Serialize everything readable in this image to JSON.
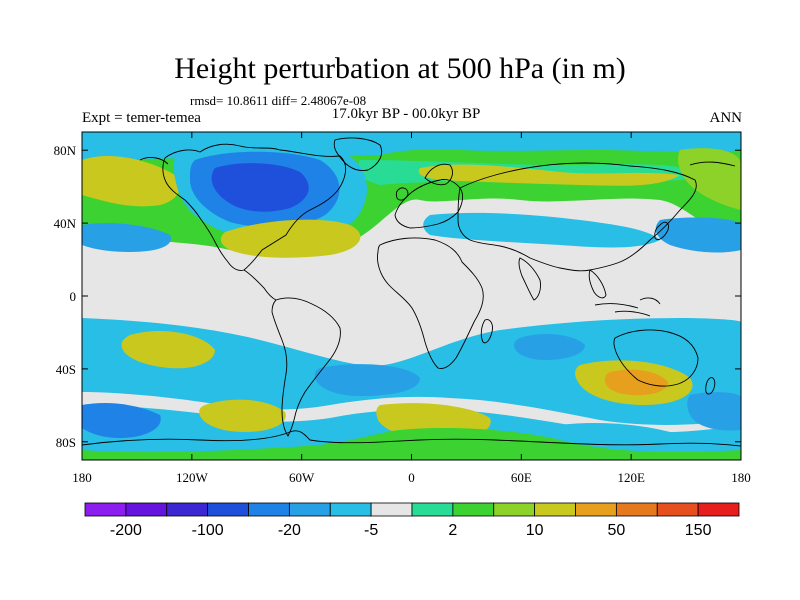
{
  "title": "Height perturbation at 500 hPa (in m)",
  "stats": "rmsd= 10.8611 diff= 2.48067e-08",
  "expt": "Expt = temer-temea",
  "period": "17.0kyr BP - 00.0kyr BP",
  "season": "ANN",
  "axes": {
    "lon_ticks": [
      "180",
      "120W",
      "60W",
      "0",
      "60E",
      "120E",
      "180"
    ],
    "lat_ticks": [
      "80N",
      "40N",
      "0",
      "40S",
      "80S"
    ]
  },
  "colorbar": {
    "labels": [
      "-200",
      "-100",
      "-20",
      "-5",
      "2",
      "10",
      "50",
      "150"
    ],
    "colors": [
      "#8c1ef0",
      "#6414dc",
      "#3c28d2",
      "#1e50dc",
      "#1e82e6",
      "#28a0e6",
      "#28bee6",
      "#e6e6e6",
      "#28dc96",
      "#3cd232",
      "#8cd228",
      "#c8c81e",
      "#e6a01e",
      "#e6781e",
      "#e6501e",
      "#e61e1e"
    ]
  },
  "colors": {
    "neutral": "#e6e6e6",
    "weak_neg": "#28bee6",
    "mid_neg": "#28a0e6",
    "strong_neg": "#1e82e6",
    "very_neg": "#1e50dc",
    "extreme_neg": "#3c28d2",
    "weak_pos": "#28dc96",
    "mid_pos": "#3cd232",
    "strong_pos": "#8cd228",
    "very_pos": "#c8c81e",
    "extreme_pos": "#e6a01e",
    "coast": "#000000"
  }
}
